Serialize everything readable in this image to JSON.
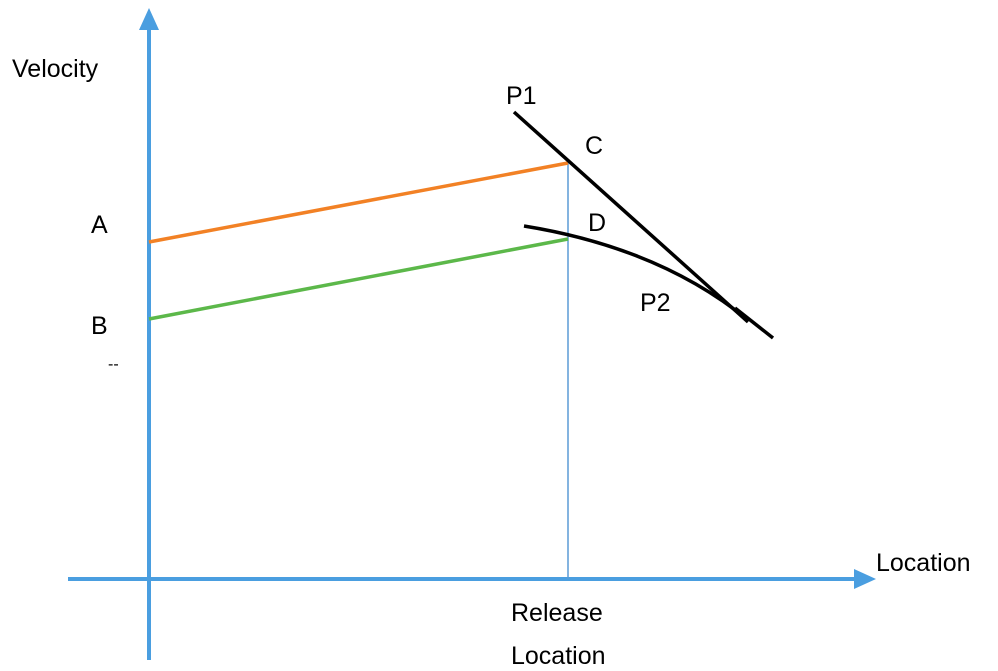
{
  "axes": {
    "y_label": "Velocity",
    "x_label": "Location",
    "release_label_line1": "Release",
    "release_label_line2": "Location"
  },
  "points": {
    "a": "A",
    "b": "B",
    "c": "C",
    "d": "D",
    "p1": "P1",
    "p2": "P2",
    "dash": "--"
  },
  "colors": {
    "axis": "#4a9ee0",
    "release_line": "#5b9bd5",
    "line_a_to_c": "#f28125",
    "line_b_to_d": "#5cb84a",
    "curve": "#000000"
  }
}
